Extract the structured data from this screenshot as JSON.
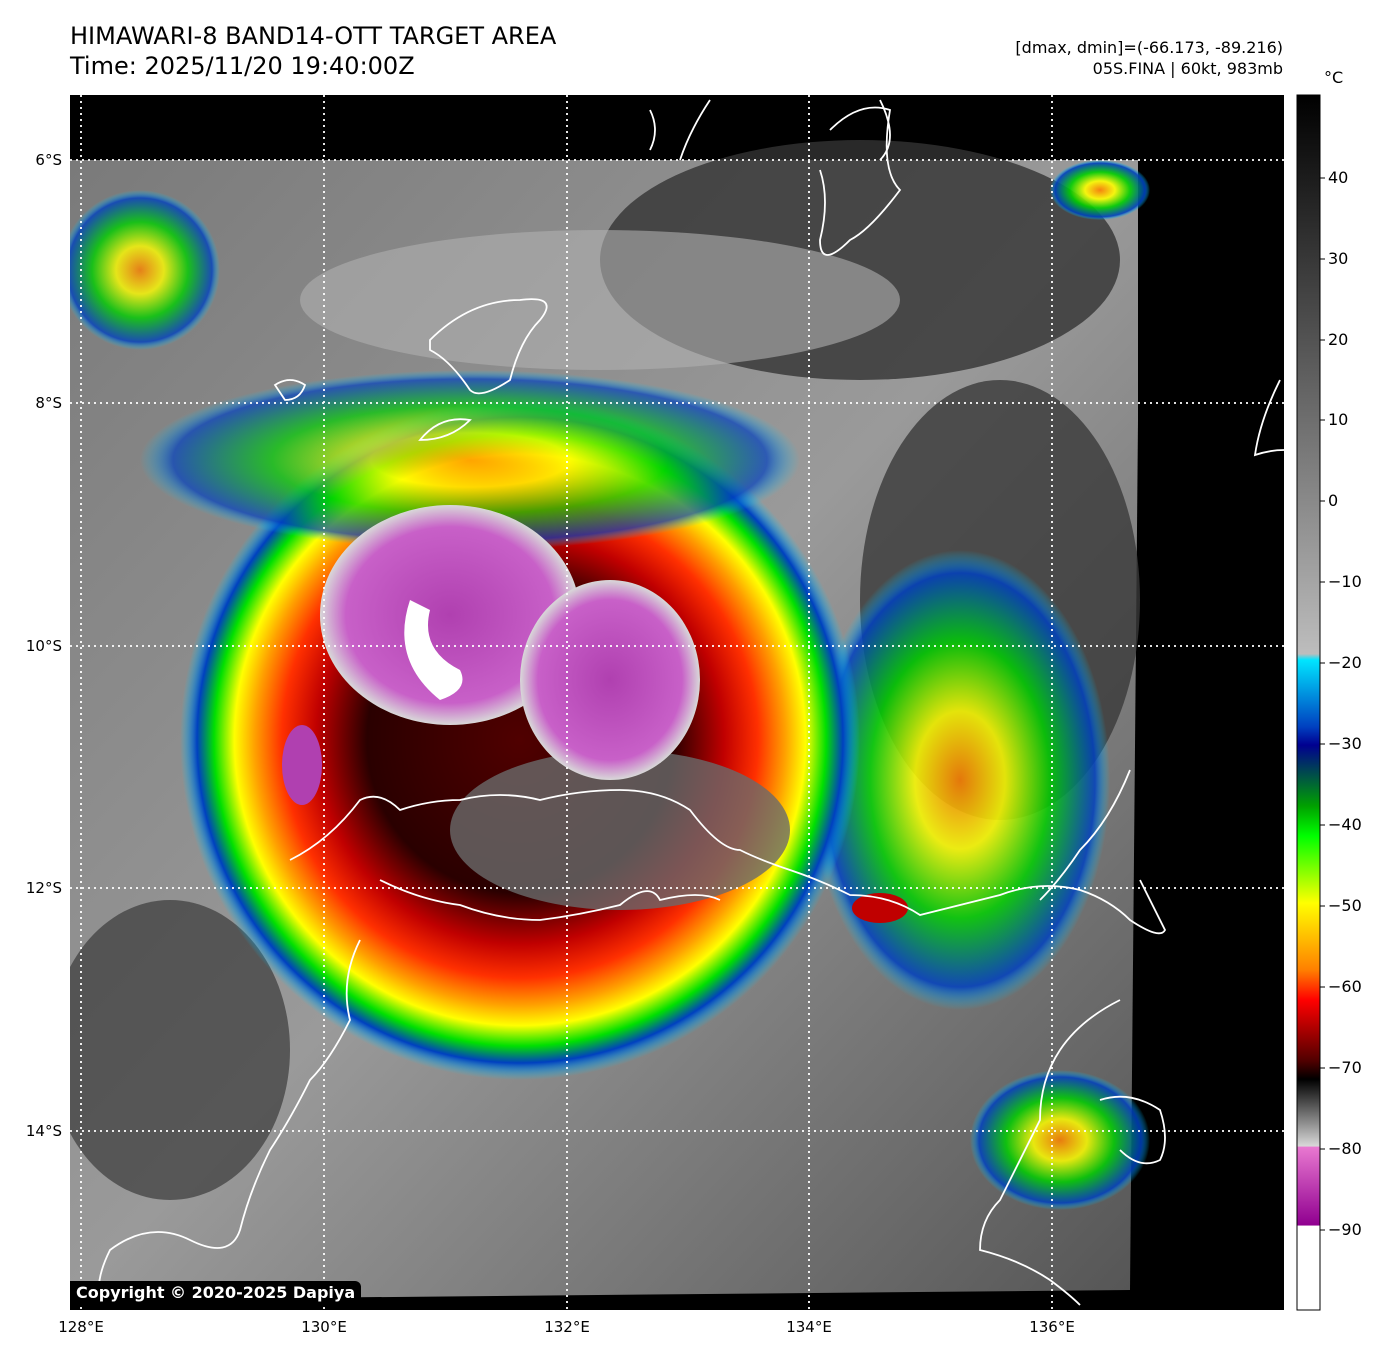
{
  "header": {
    "title_line1": "HIMAWARI-8 BAND14-OTT TARGET AREA",
    "title_line2": "Time: 2025/11/20 19:40:00Z",
    "range_text": "[dmax, dmin]=(-66.173, -89.216)",
    "storm_text": "05S.FINA | 60kt, 983mb"
  },
  "map": {
    "lat_labels": [
      "6°S",
      "8°S",
      "10°S",
      "12°S",
      "14°S"
    ],
    "lon_labels": [
      "128°E",
      "130°E",
      "132°E",
      "134°E",
      "136°E"
    ],
    "copyright": "Copyright © 2020-2025 Dapiya"
  },
  "colorbar": {
    "unit": "°C",
    "ticks": [
      "40",
      "30",
      "20",
      "10",
      "0",
      "−10",
      "−20",
      "−30",
      "−40",
      "−50",
      "−60",
      "−70",
      "−80",
      "−90"
    ],
    "colors": {
      "black": "#000000",
      "white": "#ffffff",
      "cyan": "#00e5ff",
      "blue": "#0040c0",
      "navy": "#000090",
      "green": "#00e000",
      "yellow": "#ffff00",
      "orange": "#ff8000",
      "red": "#ff0000",
      "dark_red": "#500000",
      "magenta": "#e060c8",
      "purple": "#900090"
    }
  }
}
